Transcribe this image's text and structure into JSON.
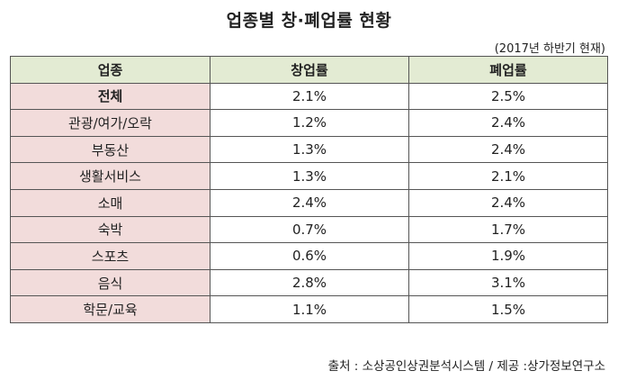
{
  "title": "업종별 창·폐업률 현황",
  "period_note": "(2017년 하반기 현재)",
  "table": {
    "headers": [
      "업종",
      "창업률",
      "폐업률"
    ],
    "rows": [
      {
        "industry": "전체",
        "startup_rate": "2.1%",
        "closure_rate": "2.5%"
      },
      {
        "industry": "관광/여가/오락",
        "startup_rate": "1.2%",
        "closure_rate": "2.4%"
      },
      {
        "industry": "부동산",
        "startup_rate": "1.3%",
        "closure_rate": "2.4%"
      },
      {
        "industry": "생활서비스",
        "startup_rate": "1.3%",
        "closure_rate": "2.1%"
      },
      {
        "industry": "소매",
        "startup_rate": "2.4%",
        "closure_rate": "2.4%"
      },
      {
        "industry": "숙박",
        "startup_rate": "0.7%",
        "closure_rate": "1.7%"
      },
      {
        "industry": "스포츠",
        "startup_rate": "0.6%",
        "closure_rate": "1.9%"
      },
      {
        "industry": "음식",
        "startup_rate": "2.8%",
        "closure_rate": "3.1%"
      },
      {
        "industry": "학문/교육",
        "startup_rate": "1.1%",
        "closure_rate": "1.5%"
      }
    ]
  },
  "source": "출처 : 소상공인상권분석시스템 / 제공 :상가정보연구소",
  "colors": {
    "header_bg": "#e3ebd3",
    "industry_bg": "#f2dcdb",
    "border": "#555555"
  }
}
